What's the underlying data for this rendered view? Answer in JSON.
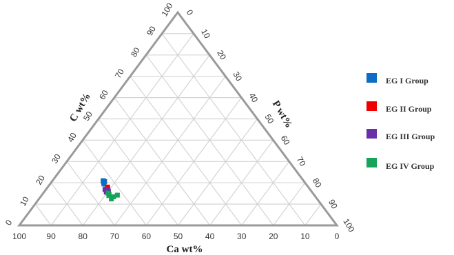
{
  "chart_data": {
    "type": "ternary-scatter",
    "axes": {
      "bottom": {
        "label": "Ca wt%",
        "ticks": [
          "100",
          "90",
          "80",
          "70",
          "60",
          "50",
          "40",
          "30",
          "20",
          "10",
          "0"
        ]
      },
      "left": {
        "label": "C wt%",
        "ticks": [
          "0",
          "10",
          "20",
          "30",
          "40",
          "50",
          "60",
          "70",
          "80",
          "90",
          "100"
        ]
      },
      "right": {
        "label": "P wt%",
        "ticks": [
          "0",
          "10",
          "20",
          "30",
          "40",
          "50",
          "60",
          "70",
          "80",
          "90",
          "100"
        ]
      },
      "range": [
        0,
        100
      ],
      "grid_step": 10,
      "grid": true
    },
    "legend_position": "right",
    "series": [
      {
        "name": "EG I Group",
        "color": "#0f6cc4",
        "marker": "square",
        "points": [
          {
            "ca": 63.4,
            "c": 20,
            "p": 16.6
          },
          {
            "ca": 63.0,
            "c": 21,
            "p": 16.0
          },
          {
            "ca": 63.2,
            "c": 20.8,
            "p": 16.0
          },
          {
            "ca": 63.6,
            "c": 19.4,
            "p": 17.0
          },
          {
            "ca": 62.8,
            "c": 20.6,
            "p": 16.6
          }
        ]
      },
      {
        "name": "EG II Group",
        "color": "#ef0000",
        "marker": "square",
        "points": [
          {
            "ca": 63.4,
            "c": 17.5,
            "p": 19.1
          },
          {
            "ca": 63.2,
            "c": 18.0,
            "p": 18.8
          },
          {
            "ca": 63.8,
            "c": 17.0,
            "p": 19.2
          }
        ]
      },
      {
        "name": "EG III Group",
        "color": "#6a2ea8",
        "marker": "square",
        "points": [
          {
            "ca": 64.2,
            "c": 17,
            "p": 18.8
          },
          {
            "ca": 63.8,
            "c": 16.5,
            "p": 19.7
          },
          {
            "ca": 64.6,
            "c": 16.8,
            "p": 18.6
          },
          {
            "ca": 64.0,
            "c": 15.8,
            "p": 20.2
          },
          {
            "ca": 64.8,
            "c": 15.6,
            "p": 19.6
          },
          {
            "ca": 64.4,
            "c": 16.2,
            "p": 19.4
          }
        ]
      },
      {
        "name": "EG IV Group",
        "color": "#17a35a",
        "marker": "square",
        "points": [
          {
            "ca": 64.4,
            "c": 14.6,
            "p": 21.0
          },
          {
            "ca": 64.8,
            "c": 14.0,
            "p": 21.2
          },
          {
            "ca": 63.6,
            "c": 13.4,
            "p": 23.0
          },
          {
            "ca": 64.8,
            "c": 12.4,
            "p": 22.8
          },
          {
            "ca": 62.0,
            "c": 14.2,
            "p": 23.8
          },
          {
            "ca": 64.4,
            "c": 15.2,
            "p": 20.4
          }
        ]
      }
    ]
  }
}
